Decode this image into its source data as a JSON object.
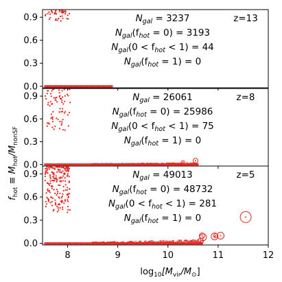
{
  "figure": {
    "ylabel_main": "f",
    "ylabel_sub": "hot",
    "ylabel_rest": " ≡ M",
    "ylabel_sub2": "hot",
    "ylabel_rest2": "/M",
    "ylabel_sub3": "nonSF",
    "xlabel_pre": "log",
    "xlabel_sub": "10",
    "xlabel_mid": "[M",
    "xlabel_sub2": "vir",
    "xlabel_mid2": "/M",
    "xlabel_sub3": "⊙",
    "xlabel_end": "]"
  },
  "chart_data": [
    {
      "type": "scatter",
      "panel": "top",
      "redshift_label": "z=13",
      "annotations": [
        "N_gal = 3237",
        "N_gal(f_hot = 0) = 3193",
        "N_gal(0 < f_hot < 1) = 44",
        "N_gal(f_hot = 1) = 0"
      ],
      "annotation_parts": [
        {
          "sub_a": "gal",
          "a": "N",
          "b": " = 3237"
        },
        {
          "sub_a": "gal",
          "a": "N",
          "b": "(f",
          "sub_b": "hot",
          "c": " = 0) = 3193"
        },
        {
          "sub_a": "gal",
          "a": "N",
          "b": "(0 < f",
          "sub_b": "hot",
          "c": " < 1) = 44"
        },
        {
          "sub_a": "gal",
          "a": "N",
          "b": "(f",
          "sub_b": "hot",
          "c": " = 1) = 0"
        }
      ],
      "xlim": [
        7.5,
        12
      ],
      "ylim": [
        -0.02,
        1.0
      ],
      "yticks": [
        0.0,
        0.3,
        0.6,
        0.9
      ],
      "yticklabels": [
        "0.0",
        "0.3",
        "0.6",
        "0.9"
      ],
      "color": "#e8251f",
      "ring_sizes_note": "none",
      "scatter_region": {
        "x": [
          7.55,
          8.05
        ],
        "y": [
          0.85,
          0.99
        ],
        "count": 44
      },
      "baseline": {
        "x": [
          7.55,
          8.9
        ],
        "y": 0.0,
        "count": 3193
      },
      "rings": []
    },
    {
      "type": "scatter",
      "panel": "middle",
      "redshift_label": "z=8",
      "annotations": [
        "N_gal = 26061",
        "N_gal(f_hot = 0) = 25986",
        "N_gal(0 < f_hot < 1) = 75",
        "N_gal(f_hot = 1) = 0"
      ],
      "annotation_parts": [
        {
          "sub_a": "gal",
          "a": "N",
          "b": " = 26061"
        },
        {
          "sub_a": "gal",
          "a": "N",
          "b": "(f",
          "sub_b": "hot",
          "c": " = 0) = 25986"
        },
        {
          "sub_a": "gal",
          "a": "N",
          "b": "(0 < f",
          "sub_b": "hot",
          "c": " < 1) = 75"
        },
        {
          "sub_a": "gal",
          "a": "N",
          "b": "(f",
          "sub_b": "hot",
          "c": " = 1) = 0"
        }
      ],
      "xlim": [
        7.5,
        12
      ],
      "ylim": [
        -0.02,
        1.0
      ],
      "yticks": [
        0.0,
        0.3,
        0.6,
        0.9
      ],
      "yticklabels": [
        "0.0",
        "0.3",
        "0.6",
        "0.9"
      ],
      "color": "#e8251f",
      "scatter_region": {
        "x": [
          7.55,
          8.05
        ],
        "y": [
          0.45,
          0.99
        ],
        "count": 75
      },
      "baseline": {
        "x": [
          7.55,
          10.6
        ],
        "y": 0.0,
        "count": 25986
      },
      "rings": [
        {
          "x": 10.3,
          "y": 0.03,
          "r": 2.5
        },
        {
          "x": 10.55,
          "y": 0.05,
          "r": 3.5
        }
      ]
    },
    {
      "type": "scatter",
      "panel": "bottom",
      "redshift_label": "z=5",
      "annotations": [
        "N_gal = 49013",
        "N_gal(f_hot = 0) = 48732",
        "N_gal(0 < f_hot < 1) = 281",
        "N_gal(f_hot = 1) = 0"
      ],
      "annotation_parts": [
        {
          "sub_a": "gal",
          "a": "N",
          "b": " = 49013"
        },
        {
          "sub_a": "gal",
          "a": "N",
          "b": "(f",
          "sub_b": "hot",
          "c": " = 0) = 48732"
        },
        {
          "sub_a": "gal",
          "a": "N",
          "b": "(0 < f",
          "sub_b": "hot",
          "c": " < 1) = 281"
        },
        {
          "sub_a": "gal",
          "a": "N",
          "b": "(f",
          "sub_b": "hot",
          "c": " = 1) = 0"
        }
      ],
      "xlim": [
        7.5,
        12
      ],
      "ylim": [
        -0.02,
        1.0
      ],
      "yticks": [
        0.0,
        0.3,
        0.6,
        0.9
      ],
      "yticklabels": [
        "0.0",
        "0.3",
        "0.6",
        "0.9"
      ],
      "xticks": [
        8,
        9,
        10,
        11,
        12
      ],
      "xticklabels": [
        "8",
        "9",
        "10",
        "11",
        "12"
      ],
      "color": "#e8251f",
      "scatter_region": {
        "x": [
          7.55,
          8.05
        ],
        "y": [
          0.4,
          0.99
        ],
        "count": 281
      },
      "baseline": {
        "x": [
          7.55,
          10.7
        ],
        "y": 0.0,
        "count": 48732
      },
      "rings": [
        {
          "x": 10.5,
          "y": 0.02,
          "r": 3
        },
        {
          "x": 10.65,
          "y": 0.03,
          "r": 4
        },
        {
          "x": 10.7,
          "y": 0.08,
          "r": 5
        },
        {
          "x": 10.68,
          "y": 0.1,
          "r": 4
        },
        {
          "x": 10.93,
          "y": 0.09,
          "r": 5
        },
        {
          "x": 11.05,
          "y": 0.1,
          "r": 5
        },
        {
          "x": 10.95,
          "y": 0.1,
          "r": 3
        },
        {
          "x": 11.55,
          "y": 0.34,
          "r": 8
        }
      ]
    }
  ]
}
